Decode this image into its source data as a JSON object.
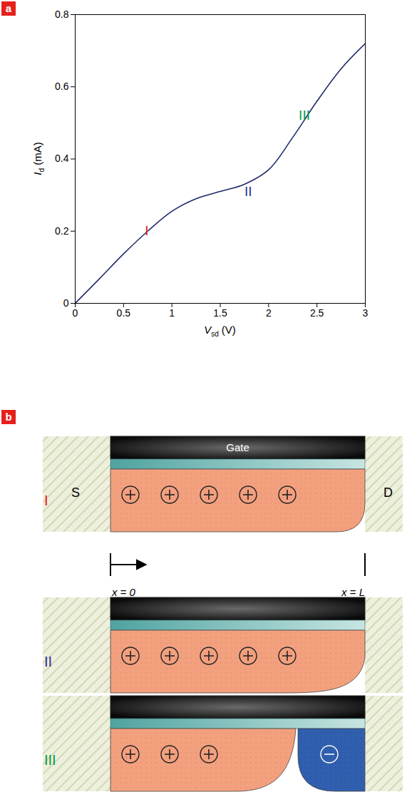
{
  "chart_data": {
    "type": "line",
    "panel": "a",
    "xlabel": "Vsd (V)",
    "ylabel": "Id (mA)",
    "x": [
      0,
      0.25,
      0.5,
      0.75,
      1.0,
      1.25,
      1.5,
      1.75,
      2.0,
      2.25,
      2.5,
      2.75,
      3.0
    ],
    "series": [
      {
        "name": "Id",
        "color": "#1f2a6b",
        "values": [
          0,
          0.068,
          0.137,
          0.2,
          0.255,
          0.29,
          0.31,
          0.33,
          0.37,
          0.46,
          0.56,
          0.65,
          0.72
        ]
      }
    ],
    "xlim": [
      0,
      3
    ],
    "ylim": [
      0,
      0.8
    ],
    "xticks": [
      0,
      0.5,
      1,
      1.5,
      2,
      2.5,
      3
    ],
    "yticks": [
      0,
      0.2,
      0.4,
      0.6,
      0.8
    ],
    "grid": false,
    "annotations": [
      {
        "text": "I",
        "x": 0.74,
        "y": 0.2,
        "color": "#e4201d"
      },
      {
        "text": "II",
        "x": 1.79,
        "y": 0.31,
        "color": "#2e3192"
      },
      {
        "text": "III",
        "x": 2.37,
        "y": 0.52,
        "color": "#0c9a4a"
      }
    ]
  },
  "diagram": {
    "panel": "b",
    "gate_label": "Gate",
    "source_label": "S",
    "drain_label": "D",
    "position_labels": [
      "x = 0",
      "x = L"
    ],
    "regimes": [
      {
        "label": "I",
        "color": "#e4201d",
        "positive_charges": 5,
        "negative_charges": 0
      },
      {
        "label": "II",
        "color": "#2e3192",
        "positive_charges": 5,
        "negative_charges": 0
      },
      {
        "label": "III",
        "color": "#0c9a4a",
        "positive_charges": 3,
        "negative_charges": 1
      }
    ]
  }
}
